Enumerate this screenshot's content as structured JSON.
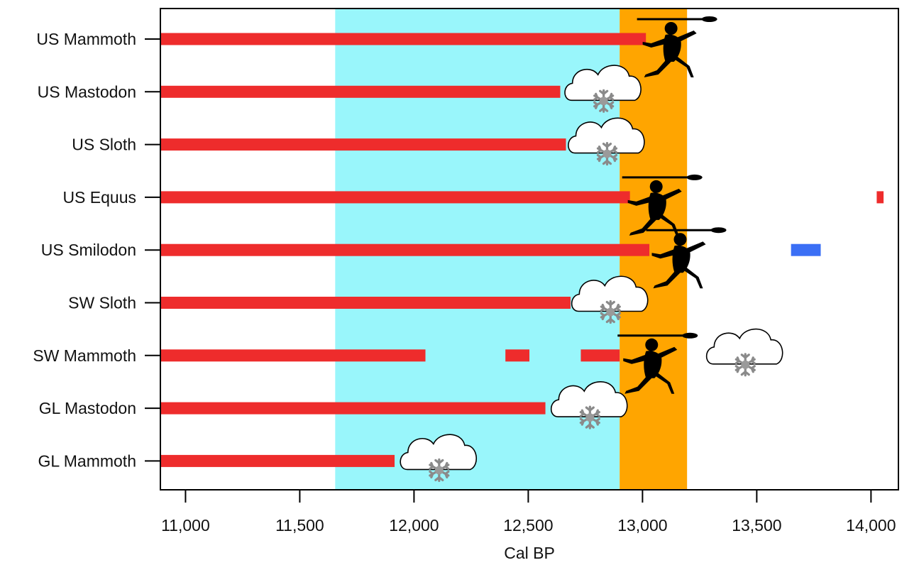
{
  "chart_data": {
    "type": "range-bar",
    "xlabel": "Cal BP",
    "xlim": [
      10890,
      14120
    ],
    "xticks": [
      11000,
      11500,
      12000,
      12500,
      13000,
      13500,
      14000
    ],
    "xtick_labels": [
      "11,000",
      "11,500",
      "12,000",
      "12,500",
      "13,000",
      "13,500",
      "14,000"
    ],
    "categories": [
      "US Mammoth",
      "US Mastodon",
      "US Sloth",
      "US Equus",
      "US Smilodon",
      "SW Sloth",
      "SW Mammoth",
      "GL Mastodon",
      "GL Mammoth"
    ],
    "bands": [
      {
        "name": "cold-period",
        "from": 11655,
        "to": 12900,
        "color": "#99f6fb"
      },
      {
        "name": "human-arrival-period",
        "from": 12900,
        "to": 13195,
        "color": "#ffa500"
      }
    ],
    "series": [
      {
        "name": "US Mammoth",
        "segments": [
          {
            "from": 10890,
            "to": 13015,
            "color": "#ee2c2c"
          }
        ]
      },
      {
        "name": "US Mastodon",
        "segments": [
          {
            "from": 10890,
            "to": 12640,
            "color": "#ee2c2c"
          }
        ]
      },
      {
        "name": "US Sloth",
        "segments": [
          {
            "from": 10890,
            "to": 12665,
            "color": "#ee2c2c"
          }
        ]
      },
      {
        "name": "US Equus",
        "segments": [
          {
            "from": 10890,
            "to": 12945,
            "color": "#ee2c2c"
          },
          {
            "from": 14025,
            "to": 14055,
            "color": "#ee2c2c"
          }
        ]
      },
      {
        "name": "US Smilodon",
        "segments": [
          {
            "from": 10890,
            "to": 13030,
            "color": "#ee2c2c"
          },
          {
            "from": 13650,
            "to": 13780,
            "color": "#3b6ff5"
          }
        ]
      },
      {
        "name": "SW Sloth",
        "segments": [
          {
            "from": 10890,
            "to": 12685,
            "color": "#ee2c2c"
          }
        ]
      },
      {
        "name": "SW Mammoth",
        "segments": [
          {
            "from": 10890,
            "to": 12050,
            "color": "#ee2c2c"
          },
          {
            "from": 12400,
            "to": 12505,
            "color": "#ee2c2c"
          },
          {
            "from": 12730,
            "to": 12900,
            "color": "#ee2c2c"
          }
        ]
      },
      {
        "name": "GL Mastodon",
        "segments": [
          {
            "from": 10890,
            "to": 12575,
            "color": "#ee2c2c"
          }
        ]
      },
      {
        "name": "GL Mammoth",
        "segments": [
          {
            "from": 10890,
            "to": 11915,
            "color": "#ee2c2c"
          }
        ]
      }
    ],
    "annotations": [
      {
        "kind": "hunter-icon",
        "row": "US Mammoth",
        "at": 13125
      },
      {
        "kind": "cold-cloud-icon",
        "row": "US Mastodon",
        "at": 12830
      },
      {
        "kind": "cold-cloud-icon",
        "row": "US Sloth",
        "at": 12845
      },
      {
        "kind": "hunter-icon",
        "row": "US Equus",
        "at": 13060
      },
      {
        "kind": "hunter-icon",
        "row": "US Smilodon",
        "at": 13165
      },
      {
        "kind": "cold-cloud-icon",
        "row": "SW Sloth",
        "at": 12860
      },
      {
        "kind": "hunter-icon",
        "row": "SW Mammoth",
        "at": 13040
      },
      {
        "kind": "cold-cloud-icon",
        "row": "SW Mammoth",
        "at": 13450
      },
      {
        "kind": "cold-cloud-icon",
        "row": "GL Mastodon",
        "at": 12770
      },
      {
        "kind": "cold-cloud-icon",
        "row": "GL Mammoth",
        "at": 12110
      }
    ]
  }
}
